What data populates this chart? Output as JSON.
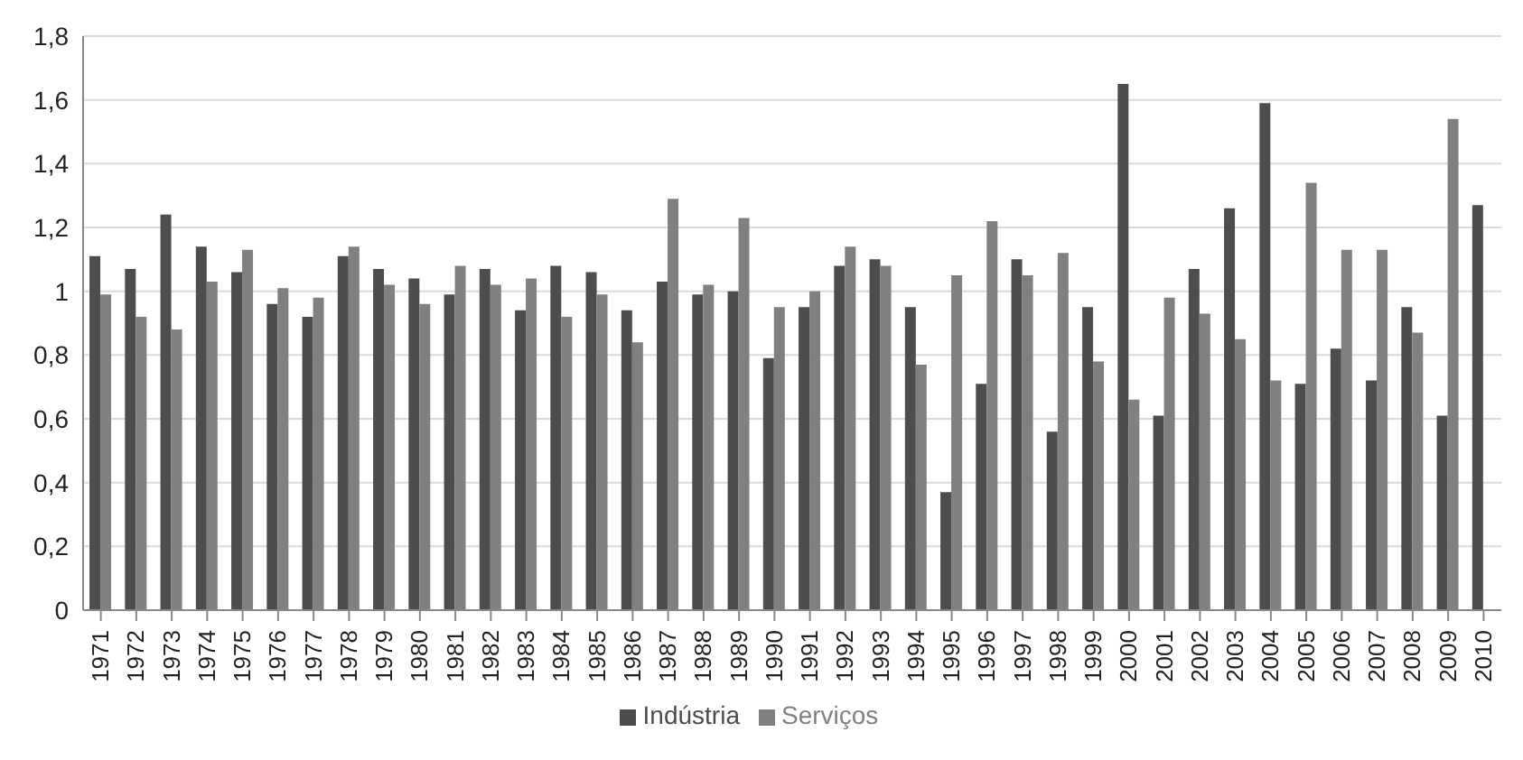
{
  "chart_data": {
    "type": "bar",
    "categories": [
      "1971",
      "1972",
      "1973",
      "1974",
      "1975",
      "1976",
      "1977",
      "1978",
      "1979",
      "1980",
      "1981",
      "1982",
      "1983",
      "1984",
      "1985",
      "1986",
      "1987",
      "1988",
      "1989",
      "1990",
      "1991",
      "1992",
      "1993",
      "1994",
      "1995",
      "1996",
      "1997",
      "1998",
      "1999",
      "2000",
      "2001",
      "2002",
      "2003",
      "2004",
      "2005",
      "2006",
      "2007",
      "2008",
      "2009",
      "2010"
    ],
    "series": [
      {
        "name": "Indústria",
        "color": "#4d4d4d",
        "values": [
          1.11,
          1.07,
          1.24,
          1.14,
          1.06,
          0.96,
          0.92,
          1.11,
          1.07,
          1.04,
          0.99,
          1.07,
          0.94,
          1.08,
          1.06,
          0.94,
          1.03,
          0.99,
          1.0,
          0.79,
          0.95,
          1.08,
          1.1,
          0.95,
          0.37,
          0.71,
          1.1,
          0.56,
          0.95,
          1.65,
          0.61,
          1.07,
          1.26,
          1.59,
          0.71,
          0.82,
          0.72,
          0.95,
          0.61,
          1.27
        ]
      },
      {
        "name": "Serviços",
        "color": "#808080",
        "values": [
          0.99,
          0.92,
          0.88,
          1.03,
          1.13,
          1.01,
          0.98,
          1.14,
          1.02,
          0.96,
          1.08,
          1.02,
          1.04,
          0.92,
          0.99,
          0.84,
          1.29,
          1.02,
          1.23,
          0.95,
          1.0,
          1.14,
          1.08,
          0.77,
          1.05,
          1.22,
          1.05,
          1.12,
          0.78,
          0.66,
          0.98,
          0.93,
          0.85,
          0.72,
          1.34,
          1.13,
          1.13,
          0.87,
          1.54,
          null
        ]
      }
    ],
    "ylim": [
      0,
      1.8
    ],
    "yticks": [
      0,
      {
        "value": 0.2,
        "label": "0,2"
      },
      {
        "value": 0.4,
        "label": "0,4"
      },
      {
        "value": 0.6,
        "label": "0,6"
      },
      {
        "value": 0.8,
        "label": "0,8"
      },
      1,
      {
        "value": 1.2,
        "label": "1,2"
      },
      {
        "value": 1.4,
        "label": "1,4"
      },
      {
        "value": 1.6,
        "label": "1,6"
      },
      {
        "value": 1.8,
        "label": "1,8"
      }
    ],
    "grid": "y",
    "legend": "bottom"
  }
}
